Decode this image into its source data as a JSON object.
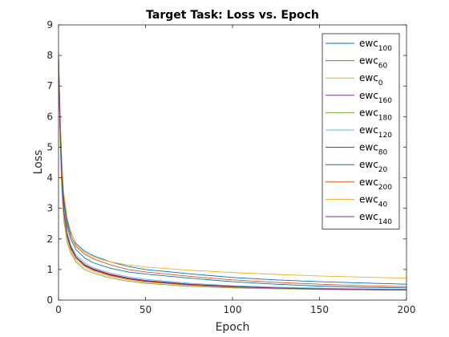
{
  "chart_data": {
    "type": "line",
    "title": "Target Task: Loss vs. Epoch",
    "xlabel": "Epoch",
    "ylabel": "Loss",
    "xlim": [
      0,
      200
    ],
    "ylim": [
      0,
      9
    ],
    "xticks": [
      "0",
      "50",
      "100",
      "150",
      "200"
    ],
    "yticks": [
      "0",
      "1",
      "2",
      "3",
      "4",
      "5",
      "6",
      "7",
      "8",
      "9"
    ],
    "grid": false,
    "legend_position": "top-right",
    "x": [
      0,
      1,
      2,
      3,
      5,
      7,
      10,
      15,
      20,
      30,
      40,
      50,
      75,
      100,
      125,
      150,
      175,
      200
    ],
    "series": [
      {
        "name": "ewc",
        "sub": "100",
        "color": "#0072BD",
        "values": [
          8.0,
          5.8,
          4.3,
          3.4,
          2.6,
          2.2,
          1.85,
          1.6,
          1.45,
          1.25,
          1.1,
          1.0,
          0.86,
          0.74,
          0.66,
          0.6,
          0.56,
          0.52
        ]
      },
      {
        "name": "ewc",
        "sub": "60",
        "color": "#D95319",
        "values": [
          8.0,
          5.7,
          4.2,
          3.3,
          2.5,
          2.1,
          1.75,
          1.5,
          1.35,
          1.15,
          1.0,
          0.92,
          0.78,
          0.66,
          0.58,
          0.52,
          0.47,
          0.44
        ]
      },
      {
        "name": "ewc",
        "sub": "0",
        "color": "#EDB120",
        "values": [
          8.1,
          5.9,
          4.4,
          3.5,
          2.7,
          2.25,
          1.8,
          1.55,
          1.4,
          1.25,
          1.15,
          1.08,
          0.98,
          0.9,
          0.84,
          0.79,
          0.75,
          0.72
        ]
      },
      {
        "name": "ewc",
        "sub": "160",
        "color": "#7E2F8E",
        "values": [
          7.9,
          5.3,
          3.8,
          2.9,
          2.1,
          1.7,
          1.4,
          1.15,
          1.0,
          0.82,
          0.7,
          0.62,
          0.5,
          0.43,
          0.39,
          0.36,
          0.34,
          0.33
        ]
      },
      {
        "name": "ewc",
        "sub": "180",
        "color": "#77AC30",
        "values": [
          8.1,
          5.0,
          3.5,
          2.6,
          1.9,
          1.55,
          1.25,
          1.0,
          0.88,
          0.72,
          0.62,
          0.55,
          0.45,
          0.4,
          0.37,
          0.35,
          0.34,
          0.33
        ]
      },
      {
        "name": "ewc",
        "sub": "120",
        "color": "#4DBEEE",
        "values": [
          7.9,
          5.4,
          3.9,
          3.0,
          2.2,
          1.8,
          1.48,
          1.22,
          1.06,
          0.88,
          0.76,
          0.68,
          0.55,
          0.47,
          0.42,
          0.39,
          0.37,
          0.35
        ]
      },
      {
        "name": "ewc",
        "sub": "80",
        "color": "#A2142F",
        "values": [
          7.9,
          5.3,
          3.8,
          2.9,
          2.15,
          1.75,
          1.42,
          1.16,
          1.02,
          0.84,
          0.72,
          0.64,
          0.52,
          0.45,
          0.4,
          0.37,
          0.35,
          0.34
        ]
      },
      {
        "name": "ewc",
        "sub": "20",
        "color": "#0072BD",
        "values": [
          8.0,
          5.6,
          4.1,
          3.2,
          2.4,
          2.0,
          1.65,
          1.38,
          1.22,
          1.04,
          0.92,
          0.85,
          0.72,
          0.6,
          0.52,
          0.46,
          0.42,
          0.4
        ]
      },
      {
        "name": "ewc",
        "sub": "200",
        "color": "#D95319",
        "values": [
          7.9,
          5.2,
          3.7,
          2.8,
          2.05,
          1.68,
          1.38,
          1.12,
          0.98,
          0.8,
          0.69,
          0.61,
          0.5,
          0.43,
          0.39,
          0.36,
          0.34,
          0.33
        ]
      },
      {
        "name": "ewc",
        "sub": "40",
        "color": "#EDB120",
        "values": [
          8.0,
          5.1,
          3.6,
          2.7,
          2.0,
          1.62,
          1.32,
          1.08,
          0.94,
          0.77,
          0.66,
          0.59,
          0.48,
          0.42,
          0.38,
          0.36,
          0.34,
          0.33
        ]
      },
      {
        "name": "ewc",
        "sub": "140",
        "color": "#7E2F8E",
        "values": [
          7.9,
          5.3,
          3.8,
          2.9,
          2.12,
          1.72,
          1.4,
          1.14,
          1.0,
          0.82,
          0.7,
          0.62,
          0.5,
          0.43,
          0.39,
          0.36,
          0.34,
          0.33
        ]
      }
    ]
  }
}
